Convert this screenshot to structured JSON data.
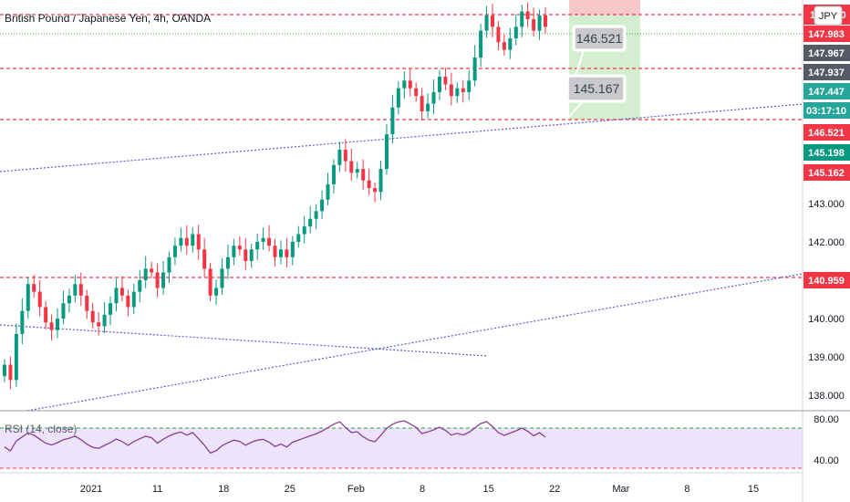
{
  "header": {
    "title": "British Pound / Japanese Yen, 4h, OANDA",
    "currency_badge": "JPY"
  },
  "rsi_panel": {
    "title": "RSI (14, close)",
    "ticks": [
      "80.00",
      "40.00"
    ],
    "upper_level": 70,
    "lower_level": 30
  },
  "price_tags": [
    {
      "label": "148.000",
      "price": 148.0,
      "color": "#f23645"
    },
    {
      "label": "147.983",
      "price": 147.983,
      "color": "#f23645"
    },
    {
      "label": "147.967",
      "price": 147.967,
      "color": "#555a66"
    },
    {
      "label": "147.937",
      "price": 147.937,
      "color": "#555a66"
    },
    {
      "label": "147.447",
      "price": 147.447,
      "color": "#26a69a"
    },
    {
      "label": "03:17:10",
      "price": 147.447,
      "color": "#26a69a"
    },
    {
      "label": "146.521",
      "price": 146.521,
      "color": "#f23645"
    },
    {
      "label": "145.198",
      "price": 145.198,
      "color": "#089981"
    },
    {
      "label": "145.162",
      "price": 145.162,
      "color": "#f23645"
    },
    {
      "label": "140.959",
      "price": 140.959,
      "color": "#f23645"
    }
  ],
  "callouts": [
    "146.521",
    "145.167"
  ],
  "chart_data": {
    "type": "candlestick",
    "title": "British Pound / Japanese Yen, 4h, OANDA",
    "y_axis": {
      "ticks": [
        138,
        139,
        140,
        141,
        142,
        143,
        144,
        145,
        146,
        147,
        148
      ],
      "tick_labels": [
        "138.000",
        "139.000",
        "140.000",
        "",
        "142.000",
        "143.000",
        "",
        "",
        "",
        "",
        ""
      ],
      "range": [
        137.6,
        148.3
      ]
    },
    "x_axis": {
      "labels": [
        "2021",
        "11",
        "18",
        "25",
        "Feb",
        "8",
        "15",
        "22",
        "Mar",
        "8",
        "15"
      ]
    },
    "horizontal_levels": [
      148.0,
      147.46,
      146.521,
      140.959
    ],
    "trendlines": [
      {
        "from": [
          "start",
          145.1
        ],
        "to": [
          "end",
          146.5
        ]
      },
      {
        "from": [
          "start",
          139.85
        ],
        "to": [
          "Feb 9",
          138.85
        ]
      },
      {
        "from": [
          "start",
          137.7
        ],
        "to": [
          "end",
          140.95
        ]
      }
    ],
    "trade_box": {
      "entry": 147.46,
      "target": 145.167,
      "stop": 148.3
    },
    "close_series": [
      138.8,
      138.4,
      139.6,
      140.2,
      140.9,
      140.7,
      140.3,
      139.9,
      139.7,
      140.0,
      140.4,
      140.6,
      140.9,
      140.6,
      140.2,
      139.9,
      139.8,
      140.1,
      140.4,
      140.8,
      140.6,
      140.3,
      140.7,
      141.0,
      141.3,
      141.2,
      140.8,
      141.2,
      141.6,
      141.9,
      142.1,
      141.9,
      142.2,
      141.8,
      141.3,
      140.6,
      140.8,
      141.3,
      141.6,
      141.9,
      141.8,
      141.5,
      141.8,
      142.0,
      142.1,
      141.9,
      141.6,
      141.8,
      141.6,
      142.0,
      142.2,
      142.4,
      142.6,
      142.8,
      143.1,
      143.5,
      144.0,
      144.4,
      144.1,
      143.8,
      143.9,
      143.6,
      143.4,
      143.3,
      143.9,
      144.8,
      145.5,
      146.0,
      146.2,
      146.0,
      145.8,
      145.4,
      145.6,
      145.9,
      146.3,
      146.1,
      145.8,
      146.0,
      145.9,
      146.2,
      146.8,
      147.5,
      147.9,
      147.6,
      147.2,
      147.0,
      147.3,
      147.6,
      148.0,
      147.8,
      147.5,
      147.9,
      147.6
    ]
  }
}
